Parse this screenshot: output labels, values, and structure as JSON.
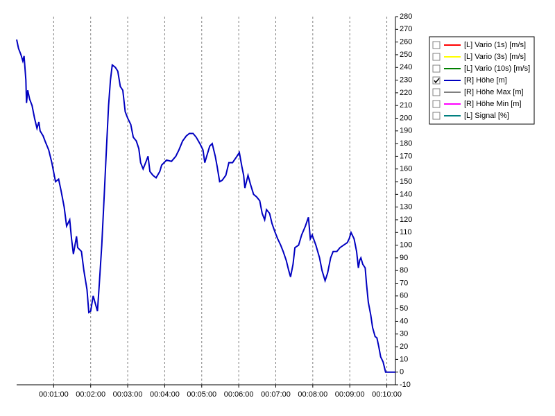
{
  "chart_data": {
    "type": "line",
    "x": [
      0,
      3,
      7,
      10,
      12,
      15,
      16,
      18,
      21,
      25,
      29,
      33,
      36,
      38,
      43,
      46,
      52,
      57,
      63,
      68,
      72,
      77,
      81,
      86,
      89,
      92,
      97,
      99,
      105,
      109,
      114,
      117,
      120,
      124,
      127,
      131,
      134,
      138,
      142,
      145,
      149,
      152,
      155,
      160,
      164,
      168,
      172,
      176,
      180,
      185,
      189,
      194,
      198,
      201,
      205,
      209,
      213,
      216,
      221,
      226,
      232,
      235,
      243,
      251,
      258,
      263,
      269,
      275,
      280,
      286,
      291,
      297,
      302,
      305,
      308,
      313,
      317,
      322,
      325,
      329,
      333,
      339,
      344,
      350,
      357,
      361,
      365,
      368,
      370,
      375,
      379,
      384,
      389,
      394,
      398,
      402,
      405,
      410,
      414,
      419,
      423,
      428,
      432,
      437,
      441,
      444,
      448,
      451,
      457,
      462,
      468,
      473,
      476,
      479,
      485,
      491,
      495,
      500,
      504,
      509,
      513,
      519,
      524,
      530,
      536,
      539,
      542,
      547,
      551,
      554,
      556,
      558,
      561,
      565,
      567,
      570,
      574,
      577,
      581,
      584,
      587,
      590,
      594,
      598,
      614
    ],
    "series": [
      {
        "name": "[L] Vario (1s) [m/s]",
        "color": "#ff0000",
        "checked": false
      },
      {
        "name": "[L] Vario (3s) [m/s]",
        "color": "#ffff00",
        "checked": false
      },
      {
        "name": "[L] Vario (10s) [m/s]",
        "color": "#008000",
        "checked": false
      },
      {
        "name": "[R] Höhe [m]",
        "color": "#0000c0",
        "checked": true,
        "axis": "y",
        "values": [
          262,
          255,
          250,
          245,
          249,
          230,
          212,
          222,
          215,
          210,
          200,
          192,
          197,
          190,
          186,
          182,
          175,
          165,
          150,
          152,
          143,
          130,
          115,
          120,
          105,
          93,
          107,
          98,
          95,
          80,
          65,
          47,
          48,
          60,
          55,
          48,
          70,
          100,
          140,
          170,
          210,
          230,
          242,
          240,
          237,
          225,
          222,
          205,
          200,
          195,
          185,
          182,
          176,
          165,
          160,
          165,
          170,
          158,
          155,
          153,
          158,
          163,
          167,
          166,
          170,
          175,
          182,
          186,
          188,
          188,
          185,
          180,
          175,
          165,
          170,
          178,
          180,
          170,
          162,
          150,
          151,
          155,
          165,
          165,
          170,
          173,
          162,
          155,
          145,
          155,
          148,
          140,
          138,
          135,
          125,
          120,
          128,
          125,
          117,
          110,
          105,
          100,
          95,
          88,
          80,
          75,
          85,
          98,
          100,
          108,
          115,
          122,
          105,
          108,
          100,
          90,
          80,
          72,
          78,
          90,
          95,
          95,
          98,
          100,
          102,
          105,
          110,
          105,
          95,
          82,
          88,
          90,
          85,
          82,
          70,
          55,
          45,
          35,
          28,
          27,
          20,
          12,
          8,
          0,
          0
        ]
      },
      {
        "name": "[R] Höhe Max [m]",
        "color": "#808080",
        "checked": false
      },
      {
        "name": "[R] Höhe Min [m]",
        "color": "#ff00ff",
        "checked": false
      },
      {
        "name": "[L] Signal [%]",
        "color": "#008080",
        "checked": false
      }
    ],
    "xlim": [
      0,
      614
    ],
    "xticks": [
      {
        "value": 60,
        "label": "00:01:00"
      },
      {
        "value": 120,
        "label": "00:02:00"
      },
      {
        "value": 180,
        "label": "00:03:00"
      },
      {
        "value": 240,
        "label": "00:04:00"
      },
      {
        "value": 300,
        "label": "00:05:00"
      },
      {
        "value": 360,
        "label": "00:06:00"
      },
      {
        "value": 420,
        "label": "00:07:00"
      },
      {
        "value": 480,
        "label": "00:08:00"
      },
      {
        "value": 540,
        "label": "00:09:00"
      },
      {
        "value": 600,
        "label": "00:10:00"
      }
    ],
    "ylim": [
      -10,
      280
    ],
    "yticks": [
      -10,
      0,
      10,
      20,
      30,
      40,
      50,
      60,
      70,
      80,
      90,
      100,
      110,
      120,
      130,
      140,
      150,
      160,
      170,
      180,
      190,
      200,
      210,
      220,
      230,
      240,
      250,
      260,
      270,
      280
    ],
    "grid": "x",
    "legend": "right"
  }
}
